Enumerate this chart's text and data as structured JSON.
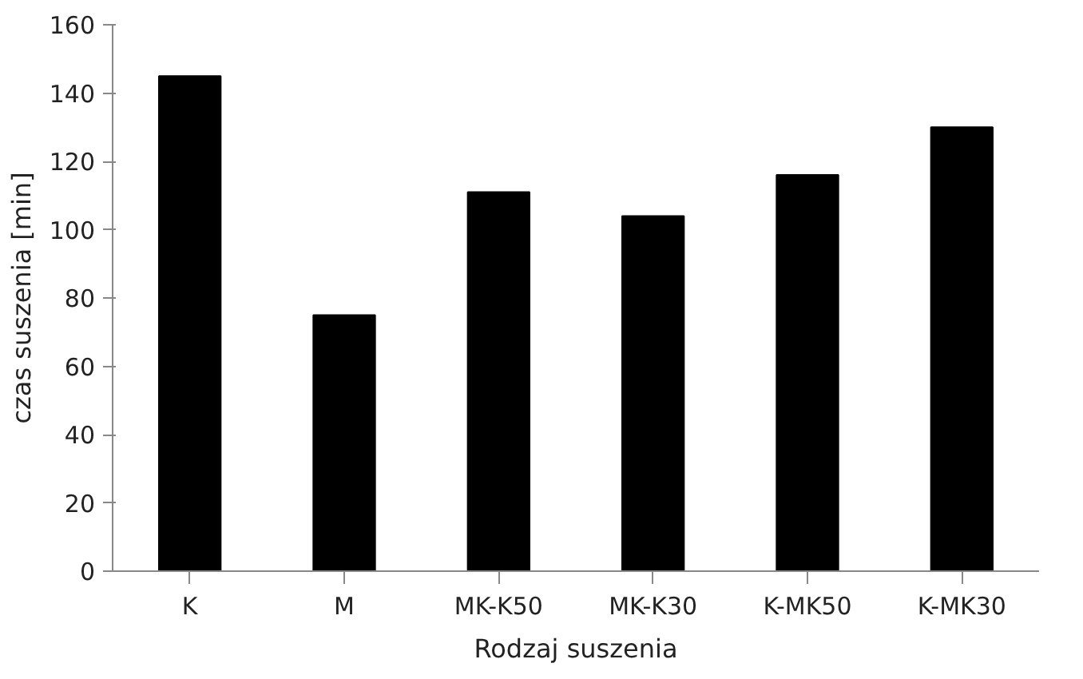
{
  "chart_data": {
    "type": "bar",
    "xlabel": "Rodzaj suszenia",
    "ylabel": "czas suszenia [min]",
    "categories": [
      "K",
      "M",
      "MK-K50",
      "MK-K30",
      "K-MK50",
      "K-MK30"
    ],
    "values": [
      145,
      75,
      111,
      104,
      116,
      130
    ],
    "color": "#000000",
    "ylim": [
      0,
      160
    ],
    "yticks": [
      0,
      20,
      40,
      60,
      80,
      100,
      120,
      140,
      160
    ],
    "grid": false
  }
}
